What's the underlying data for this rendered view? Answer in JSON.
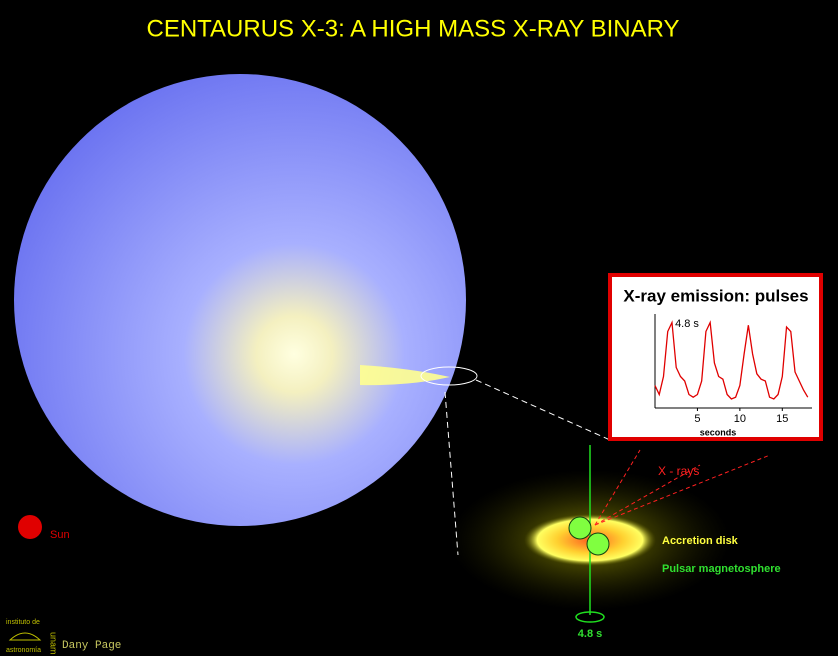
{
  "title": "CENTAURUS  X-3:  A HIGH MASS X-RAY BINARY",
  "labels": {
    "sun": "Sun",
    "xrays": "X - rays",
    "accretion_disk": "Accretion disk",
    "magnetosphere": "Pulsar magnetosphere",
    "spin_period": "4.8 s",
    "credit": "Dany Page",
    "institute_top": "instituto de",
    "institute_bottom": "astronomía",
    "unam": "unam"
  },
  "chart_data": {
    "type": "line",
    "title": "X-ray emission: pulses",
    "xlabel": "seconds",
    "annotation": "4.8 s",
    "x": [
      0,
      0.5,
      1,
      1.5,
      2,
      2.5,
      3,
      3.5,
      4,
      4.5,
      5,
      5.5,
      6,
      6.5,
      7,
      7.5,
      8,
      8.5,
      9,
      9.5,
      10,
      10.5,
      11,
      11.5,
      12,
      12.5,
      13,
      13.5,
      14,
      14.5,
      15,
      15.5,
      16,
      16.5,
      17,
      17.5,
      18
    ],
    "series": [
      {
        "color": "#e00000",
        "values": [
          0.25,
          0.15,
          0.35,
          0.85,
          0.95,
          0.45,
          0.35,
          0.3,
          0.15,
          0.12,
          0.15,
          0.3,
          0.85,
          0.95,
          0.5,
          0.35,
          0.32,
          0.15,
          0.1,
          0.12,
          0.25,
          0.6,
          0.92,
          0.6,
          0.38,
          0.32,
          0.3,
          0.12,
          0.1,
          0.15,
          0.35,
          0.9,
          0.85,
          0.4,
          0.3,
          0.2,
          0.12
        ]
      }
    ],
    "xlim": [
      0,
      18.5
    ],
    "ylim": [
      0,
      1
    ],
    "xticks": [
      5,
      10,
      15
    ]
  }
}
